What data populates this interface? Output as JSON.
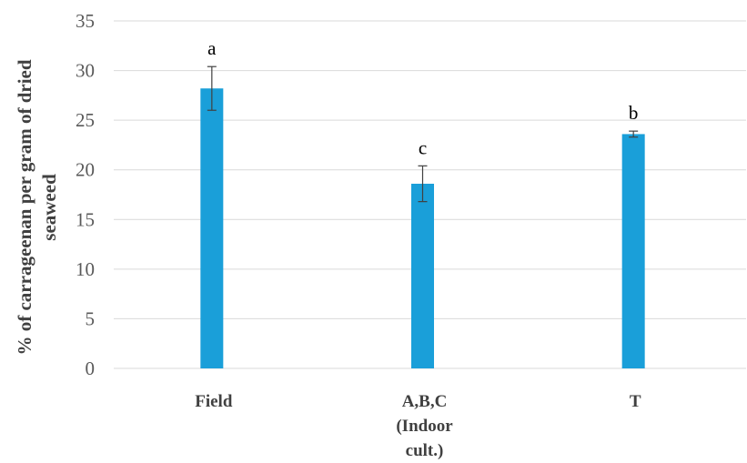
{
  "chart_data": {
    "type": "bar",
    "categories": [
      [
        "Field"
      ],
      [
        "A,B,C",
        "(Indoor",
        "cult.)"
      ],
      [
        "T"
      ]
    ],
    "values": [
      28.2,
      18.6,
      23.6
    ],
    "errors": [
      2.2,
      1.8,
      0.3
    ],
    "significance_labels": [
      "a",
      "c",
      "b"
    ],
    "ylabel_lines": [
      "% of carrageenan per gram of dried",
      "seaweed"
    ],
    "ylim": [
      0,
      35
    ],
    "yticks": [
      0,
      5,
      10,
      15,
      20,
      25,
      30,
      35
    ],
    "grid": true,
    "bar_color": "#1a9fd9",
    "grid_color": "#d9d9d9"
  }
}
